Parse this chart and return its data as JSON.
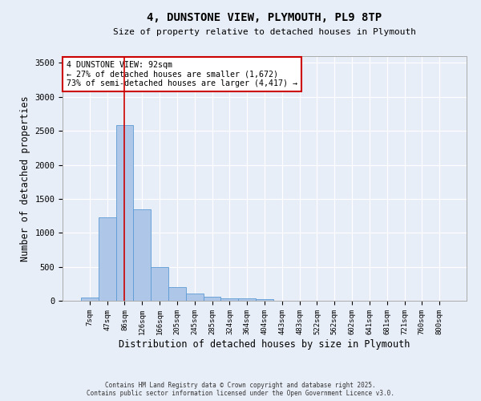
{
  "title": "4, DUNSTONE VIEW, PLYMOUTH, PL9 8TP",
  "subtitle": "Size of property relative to detached houses in Plymouth",
  "xlabel": "Distribution of detached houses by size in Plymouth",
  "ylabel": "Number of detached properties",
  "categories": [
    "7sqm",
    "47sqm",
    "86sqm",
    "126sqm",
    "166sqm",
    "205sqm",
    "245sqm",
    "285sqm",
    "324sqm",
    "364sqm",
    "404sqm",
    "443sqm",
    "483sqm",
    "522sqm",
    "562sqm",
    "602sqm",
    "641sqm",
    "681sqm",
    "721sqm",
    "760sqm",
    "800sqm"
  ],
  "values": [
    50,
    1230,
    2590,
    1340,
    500,
    205,
    110,
    55,
    40,
    30,
    25,
    0,
    0,
    0,
    0,
    0,
    0,
    0,
    0,
    0,
    0
  ],
  "bar_color": "#aec6e8",
  "bar_edge_color": "#5b9bd5",
  "vline_x_index": 2,
  "vline_color": "#cc0000",
  "annotation_title": "4 DUNSTONE VIEW: 92sqm",
  "annotation_line1": "← 27% of detached houses are smaller (1,672)",
  "annotation_line2": "73% of semi-detached houses are larger (4,417) →",
  "annotation_box_color": "#ffffff",
  "annotation_border_color": "#cc0000",
  "ylim": [
    0,
    3600
  ],
  "yticks": [
    0,
    500,
    1000,
    1500,
    2000,
    2500,
    3000,
    3500
  ],
  "background_color": "#e8eef8",
  "grid_color": "#ffffff",
  "footer_line1": "Contains HM Land Registry data © Crown copyright and database right 2025.",
  "footer_line2": "Contains public sector information licensed under the Open Government Licence v3.0."
}
